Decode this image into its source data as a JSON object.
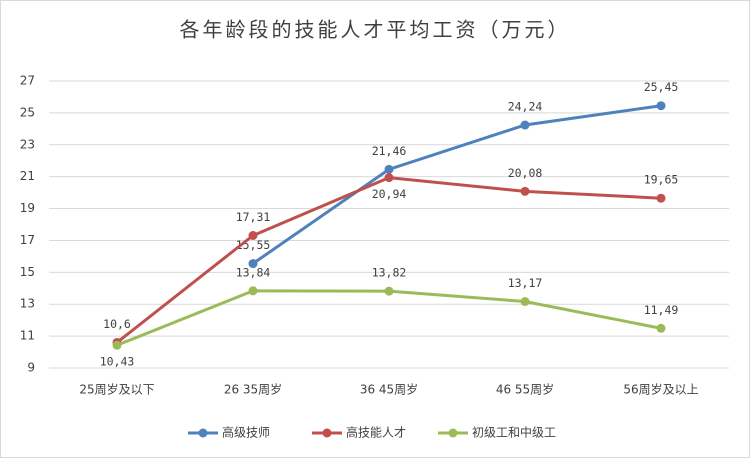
{
  "chart_data": {
    "type": "line",
    "title": "各年龄段的技能人才平均工资（万元）",
    "categories": [
      "25周岁及以下",
      "26 35周岁",
      "36 45周岁",
      "46 55周岁",
      "56周岁及以上"
    ],
    "series": [
      {
        "name": "高级技师",
        "color": "#4f81bd",
        "values": [
          null,
          15.55,
          21.46,
          24.24,
          25.45
        ],
        "value_labels": [
          null,
          "15,55",
          "21,46",
          "24,24",
          "25,45"
        ]
      },
      {
        "name": "高技能人才",
        "color": "#c0504d",
        "values": [
          10.6,
          17.31,
          20.94,
          20.08,
          19.65
        ],
        "value_labels": [
          "10,6",
          "17,31",
          "20,94",
          "20,08",
          "19,65"
        ]
      },
      {
        "name": "初级工和中级工",
        "color": "#9bbb59",
        "values": [
          10.43,
          13.84,
          13.82,
          13.17,
          11.49
        ],
        "value_labels": [
          "10,43",
          "13,84",
          "13,82",
          "13,17",
          "11,49"
        ]
      }
    ],
    "ylim": [
      9,
      27
    ],
    "yticks": [
      9,
      11,
      13,
      15,
      17,
      19,
      21,
      23,
      25,
      27
    ],
    "grid": true,
    "legend": "bottom"
  }
}
